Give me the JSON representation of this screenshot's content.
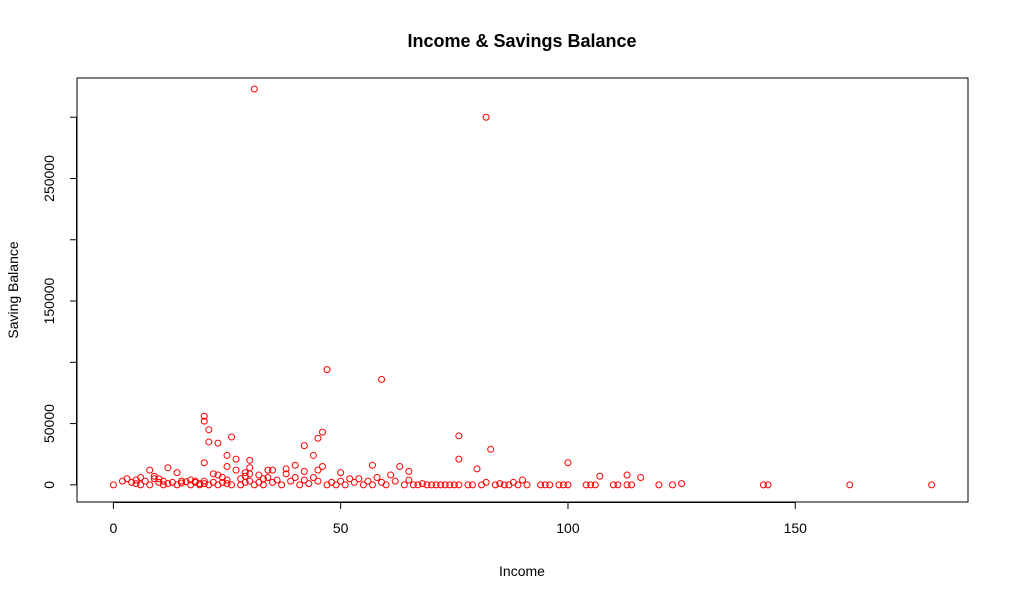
{
  "chart_data": {
    "type": "scatter",
    "title": "Income & Savings Balance",
    "xlabel": "Income",
    "ylabel": "Saving Balance",
    "xlim": [
      -8,
      188
    ],
    "ylim": [
      -14000,
      332000
    ],
    "x_ticks": [
      0,
      50,
      100,
      150
    ],
    "y_ticks_labeled": [
      0,
      50000,
      150000,
      250000
    ],
    "y_ticks": [
      0,
      50000,
      100000,
      150000,
      200000,
      250000,
      300000
    ],
    "grid": false,
    "legend": "none",
    "point_color": "#ff0000",
    "points": [
      [
        0,
        0
      ],
      [
        2,
        3000
      ],
      [
        3,
        5000
      ],
      [
        4,
        2000
      ],
      [
        5,
        1000
      ],
      [
        5,
        4000
      ],
      [
        6,
        6000
      ],
      [
        6,
        0
      ],
      [
        7,
        3000
      ],
      [
        8,
        12000
      ],
      [
        8,
        0
      ],
      [
        9,
        5000
      ],
      [
        9,
        7000
      ],
      [
        10,
        2000
      ],
      [
        10,
        5000
      ],
      [
        11,
        3000
      ],
      [
        11,
        0
      ],
      [
        12,
        14000
      ],
      [
        12,
        1000
      ],
      [
        13,
        2000
      ],
      [
        14,
        0
      ],
      [
        14,
        10000
      ],
      [
        15,
        3000
      ],
      [
        15,
        1500
      ],
      [
        16,
        2500
      ],
      [
        17,
        0
      ],
      [
        17,
        4000
      ],
      [
        18,
        3000
      ],
      [
        18,
        2000
      ],
      [
        19,
        0
      ],
      [
        19,
        1000
      ],
      [
        20,
        56000
      ],
      [
        20,
        52000
      ],
      [
        20,
        18000
      ],
      [
        20,
        3000
      ],
      [
        20,
        1000
      ],
      [
        21,
        45000
      ],
      [
        21,
        35000
      ],
      [
        21,
        0
      ],
      [
        22,
        9000
      ],
      [
        22,
        2000
      ],
      [
        23,
        34000
      ],
      [
        23,
        8000
      ],
      [
        23,
        0
      ],
      [
        24,
        6000
      ],
      [
        24,
        2000
      ],
      [
        25,
        24000
      ],
      [
        25,
        15000
      ],
      [
        25,
        4000
      ],
      [
        25,
        1000
      ],
      [
        26,
        39000
      ],
      [
        26,
        0
      ],
      [
        27,
        21000
      ],
      [
        27,
        12000
      ],
      [
        28,
        5000
      ],
      [
        28,
        0
      ],
      [
        29,
        10000
      ],
      [
        29,
        7000
      ],
      [
        29,
        2000
      ],
      [
        30,
        20000
      ],
      [
        30,
        14000
      ],
      [
        30,
        9000
      ],
      [
        30,
        3000
      ],
      [
        31,
        323000
      ],
      [
        31,
        0
      ],
      [
        32,
        8000
      ],
      [
        32,
        2000
      ],
      [
        33,
        5000
      ],
      [
        33,
        0
      ],
      [
        34,
        12000
      ],
      [
        34,
        6000
      ],
      [
        35,
        12000
      ],
      [
        35,
        2000
      ],
      [
        36,
        4000
      ],
      [
        37,
        0
      ],
      [
        38,
        9000
      ],
      [
        38,
        13000
      ],
      [
        39,
        3000
      ],
      [
        40,
        16000
      ],
      [
        40,
        6000
      ],
      [
        41,
        0
      ],
      [
        42,
        32000
      ],
      [
        42,
        11000
      ],
      [
        42,
        4000
      ],
      [
        43,
        1000
      ],
      [
        44,
        24000
      ],
      [
        44,
        6000
      ],
      [
        45,
        38000
      ],
      [
        45,
        12000
      ],
      [
        45,
        3000
      ],
      [
        46,
        43000
      ],
      [
        46,
        15000
      ],
      [
        47,
        94000
      ],
      [
        47,
        0
      ],
      [
        48,
        2000
      ],
      [
        49,
        0
      ],
      [
        50,
        10000
      ],
      [
        50,
        3000
      ],
      [
        51,
        0
      ],
      [
        52,
        5000
      ],
      [
        53,
        2000
      ],
      [
        54,
        5000
      ],
      [
        55,
        0
      ],
      [
        56,
        3000
      ],
      [
        57,
        16000
      ],
      [
        57,
        0
      ],
      [
        58,
        6000
      ],
      [
        59,
        86000
      ],
      [
        59,
        2000
      ],
      [
        60,
        0
      ],
      [
        61,
        8000
      ],
      [
        62,
        3000
      ],
      [
        63,
        15000
      ],
      [
        64,
        0
      ],
      [
        65,
        11000
      ],
      [
        65,
        4000
      ],
      [
        66,
        0
      ],
      [
        67,
        0
      ],
      [
        68,
        1000
      ],
      [
        69,
        0
      ],
      [
        70,
        0
      ],
      [
        71,
        0
      ],
      [
        72,
        0
      ],
      [
        73,
        0
      ],
      [
        74,
        0
      ],
      [
        75,
        0
      ],
      [
        76,
        40000
      ],
      [
        76,
        21000
      ],
      [
        76,
        0
      ],
      [
        78,
        0
      ],
      [
        79,
        0
      ],
      [
        80,
        13000
      ],
      [
        81,
        0
      ],
      [
        82,
        300000
      ],
      [
        82,
        2000
      ],
      [
        83,
        29000
      ],
      [
        84,
        0
      ],
      [
        85,
        1000
      ],
      [
        86,
        0
      ],
      [
        87,
        0
      ],
      [
        88,
        2000
      ],
      [
        89,
        0
      ],
      [
        90,
        4000
      ],
      [
        91,
        0
      ],
      [
        94,
        0
      ],
      [
        95,
        0
      ],
      [
        96,
        0
      ],
      [
        98,
        0
      ],
      [
        99,
        0
      ],
      [
        100,
        18000
      ],
      [
        100,
        0
      ],
      [
        104,
        0
      ],
      [
        105,
        0
      ],
      [
        106,
        0
      ],
      [
        107,
        7000
      ],
      [
        110,
        0
      ],
      [
        111,
        0
      ],
      [
        113,
        8000
      ],
      [
        113,
        0
      ],
      [
        114,
        0
      ],
      [
        116,
        6000
      ],
      [
        120,
        0
      ],
      [
        123,
        0
      ],
      [
        125,
        1000
      ],
      [
        143,
        0
      ],
      [
        144,
        0
      ],
      [
        162,
        0
      ],
      [
        180,
        0
      ]
    ]
  }
}
